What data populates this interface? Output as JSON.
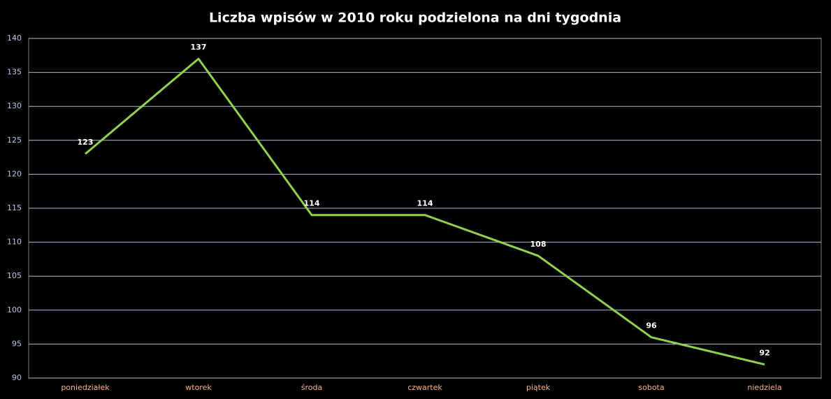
{
  "chart_data": {
    "type": "line",
    "title": "Liczba wpisów w 2010 roku podzielona na dni tygodnia",
    "categories": [
      "poniedziałek",
      "wtorek",
      "środa",
      "czwartek",
      "piątek",
      "sobota",
      "niedziela"
    ],
    "values": [
      123,
      137,
      114,
      114,
      108,
      96,
      92
    ],
    "color": "#92d050",
    "ylim": [
      90,
      140
    ],
    "yticks": [
      90,
      95,
      100,
      105,
      110,
      115,
      120,
      125,
      130,
      135,
      140
    ],
    "grid": true
  }
}
